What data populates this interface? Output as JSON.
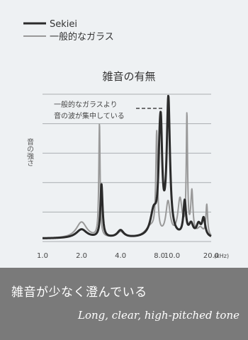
{
  "chart_data": {
    "type": "line",
    "title": "雑音の有無",
    "ylabel": "音の強さ",
    "x_unit": "(kHz)",
    "x_ticks": [
      "1.0",
      "2.0",
      "4.0",
      "8.0",
      "10.0",
      "20.0"
    ],
    "xlim": [
      1.0,
      20.0
    ],
    "ylim": [
      0,
      100
    ],
    "grid": true,
    "legend_position": "top-left",
    "series": [
      {
        "name": "Sekiei",
        "color": "#2b2b2b",
        "peaks": [
          {
            "x": 2.0,
            "y": 8,
            "w": 0.05
          },
          {
            "x": 2.85,
            "y": 38,
            "w": 0.01
          },
          {
            "x": 4.0,
            "y": 7,
            "w": 0.03
          },
          {
            "x": 7.2,
            "y": 18,
            "w": 0.03
          },
          {
            "x": 8.0,
            "y": 37,
            "w": 0.012
          },
          {
            "x": 8.2,
            "y": 57,
            "w": 0.012
          },
          {
            "x": 9.35,
            "y": 94,
            "w": 0.015
          },
          {
            "x": 12.5,
            "y": 25,
            "w": 0.012
          },
          {
            "x": 14.0,
            "y": 10,
            "w": 0.02
          },
          {
            "x": 16.0,
            "y": 10,
            "w": 0.02
          },
          {
            "x": 17.5,
            "y": 14,
            "w": 0.015
          }
        ]
      },
      {
        "name": "一般的なガラス",
        "color": "#999999",
        "peaks": [
          {
            "x": 2.0,
            "y": 13,
            "w": 0.05
          },
          {
            "x": 2.75,
            "y": 79,
            "w": 0.006
          },
          {
            "x": 4.0,
            "y": 6,
            "w": 0.03
          },
          {
            "x": 6.8,
            "y": 9,
            "w": 0.05
          },
          {
            "x": 7.6,
            "y": 70,
            "w": 0.008
          },
          {
            "x": 9.3,
            "y": 25,
            "w": 0.02
          },
          {
            "x": 11.5,
            "y": 27,
            "w": 0.02
          },
          {
            "x": 13.0,
            "y": 82,
            "w": 0.006
          },
          {
            "x": 14.2,
            "y": 31,
            "w": 0.01
          },
          {
            "x": 16.5,
            "y": 8,
            "w": 0.03
          },
          {
            "x": 18.5,
            "y": 23,
            "w": 0.008
          }
        ]
      }
    ],
    "annotation": {
      "lines": [
        "一般的なガラスより",
        "音の波が集中している"
      ]
    }
  },
  "caption": {
    "main": "雑音が少なく澄んでいる",
    "sub": "Long, clear, high-pitched tone"
  }
}
